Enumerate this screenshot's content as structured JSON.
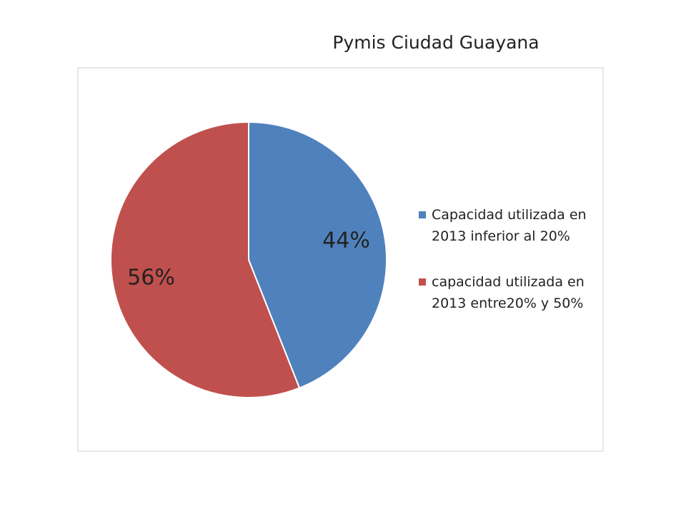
{
  "chart_data": {
    "type": "pie",
    "title": "Pymis Ciudad Guayana",
    "categories": [
      "Capacidad utilizada en 2013 inferior al 20%",
      "capacidad utilizada en 2013 entre20% y 50%"
    ],
    "values": [
      44,
      56
    ],
    "value_labels": [
      "44%",
      "56%"
    ],
    "colors": [
      "#4f81bd",
      "#c0504d"
    ],
    "legend": "right"
  }
}
